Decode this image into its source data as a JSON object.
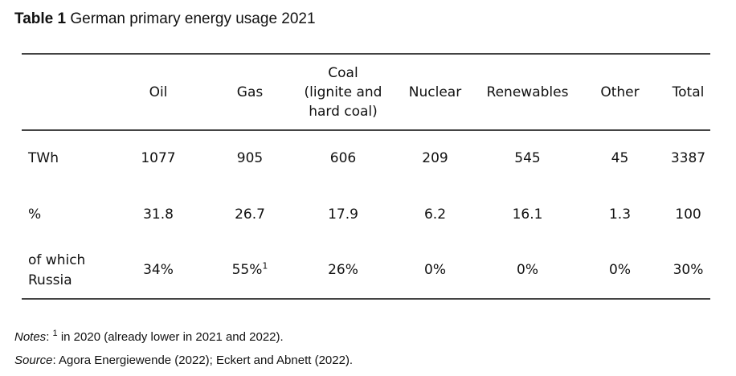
{
  "title": {
    "label": "Table 1",
    "text": "German primary energy usage 2021"
  },
  "table": {
    "columns": [
      "",
      "Oil",
      "Gas",
      "Coal (lignite and hard coal)",
      "Nuclear",
      "Renewables",
      "Other",
      "Total"
    ],
    "coal_lines": [
      "Coal",
      "(lignite and",
      "hard coal)"
    ],
    "rows": [
      {
        "label": "TWh",
        "values": [
          "1077",
          "905",
          "606",
          "209",
          "545",
          "45",
          "3387"
        ]
      },
      {
        "label": "%",
        "values": [
          "31.8",
          "26.7",
          "17.9",
          "6.2",
          "16.1",
          "1.3",
          "100"
        ]
      },
      {
        "label_lines": [
          "of which",
          "Russia"
        ],
        "values": [
          "34%",
          "55%",
          "26%",
          "0%",
          "0%",
          "0%",
          "30%"
        ],
        "gas_superscript": "1"
      }
    ]
  },
  "notes": {
    "label": "Notes",
    "superscript": "1",
    "text": " in 2020 (already lower in 2021 and 2022).",
    "source_label": "Source",
    "source_text": ": Agora Energiewende (2022); Eckert and Abnett (2022)."
  }
}
